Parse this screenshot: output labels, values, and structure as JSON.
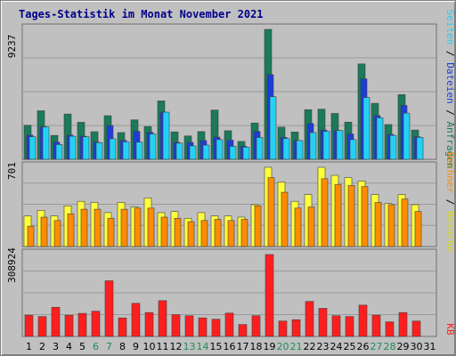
{
  "title": "Tages-Statistik im Monat November 2021",
  "colors": {
    "anfragen": "#1a7a5a",
    "dateien": "#1e3cd7",
    "seiten": "#22d2f5",
    "besuche": "#ffff3c",
    "rechner": "#ff8c00",
    "kb": "#ff1e1e",
    "weekend": "#1e8c5a",
    "weekday": "#000000"
  },
  "chart_data": [
    {
      "type": "bar",
      "panel": "top",
      "max_label": "9237",
      "right_label": {
        "anfragen": "Anfragen",
        "dateien": "Dateien",
        "seiten": "Seiten",
        "sep": "/"
      },
      "x": [
        1,
        2,
        3,
        4,
        5,
        6,
        7,
        8,
        9,
        10,
        11,
        12,
        13,
        14,
        15,
        16,
        17,
        18,
        19,
        20,
        21,
        22,
        23,
        24,
        25,
        26,
        27,
        28,
        29,
        30,
        31
      ],
      "series": [
        {
          "name": "Anfragen",
          "values": [
            2420,
            3450,
            1700,
            3220,
            2630,
            1960,
            3100,
            1900,
            2800,
            2330,
            4150,
            1950,
            1660,
            1970,
            3500,
            2030,
            1270,
            2580,
            9237,
            2290,
            1940,
            3530,
            3560,
            3260,
            2640,
            6780,
            3980,
            2470,
            4600,
            2080,
            0
          ]
        },
        {
          "name": "Dateien",
          "values": [
            1720,
            2330,
            1220,
            1720,
            1640,
            1220,
            2400,
            1350,
            1990,
            1920,
            3350,
            1200,
            1200,
            1330,
            1580,
            1360,
            930,
            1980,
            6020,
            1560,
            1330,
            2550,
            2080,
            2050,
            1800,
            5720,
            3110,
            1770,
            3830,
            1600,
            0
          ]
        },
        {
          "name": "Seiten",
          "values": [
            1600,
            2300,
            1050,
            1640,
            1600,
            1190,
            1460,
            1240,
            1220,
            1800,
            3350,
            1150,
            950,
            1010,
            1400,
            920,
            870,
            1550,
            4450,
            1480,
            1330,
            1900,
            1990,
            2050,
            1400,
            4390,
            2950,
            1700,
            3280,
            1560,
            0
          ]
        }
      ]
    },
    {
      "type": "bar",
      "panel": "middle",
      "max_label": "701",
      "right_label": {
        "rechner": "Rechner",
        "besuche": "Besuche",
        "sep": "/"
      },
      "x": [
        1,
        2,
        3,
        4,
        5,
        6,
        7,
        8,
        9,
        10,
        11,
        12,
        13,
        14,
        15,
        16,
        17,
        18,
        19,
        20,
        21,
        22,
        23,
        24,
        25,
        26,
        27,
        28,
        29,
        30,
        31
      ],
      "series": [
        {
          "name": "Besuche",
          "values": [
            270,
            320,
            270,
            360,
            400,
            390,
            300,
            390,
            350,
            430,
            300,
            310,
            250,
            300,
            270,
            270,
            260,
            370,
            701,
            570,
            400,
            460,
            701,
            630,
            610,
            580,
            460,
            380,
            460,
            370,
            0
          ]
        },
        {
          "name": "Rechner",
          "values": [
            180,
            260,
            230,
            290,
            330,
            330,
            250,
            330,
            340,
            340,
            260,
            250,
            220,
            230,
            240,
            230,
            240,
            360,
            610,
            480,
            340,
            350,
            600,
            550,
            540,
            530,
            390,
            370,
            420,
            310,
            0
          ]
        }
      ]
    },
    {
      "type": "bar",
      "panel": "bottom",
      "max_label": "308924",
      "right_label": {
        "kb": "KB"
      },
      "x": [
        1,
        2,
        3,
        4,
        5,
        6,
        7,
        8,
        9,
        10,
        11,
        12,
        13,
        14,
        15,
        16,
        17,
        18,
        19,
        20,
        21,
        22,
        23,
        24,
        25,
        26,
        27,
        28,
        29,
        30,
        31
      ],
      "series": [
        {
          "name": "KB",
          "values": [
            80000,
            75000,
            110000,
            80000,
            87000,
            95000,
            210000,
            70000,
            125000,
            90000,
            135000,
            82000,
            78000,
            70000,
            65000,
            88000,
            45000,
            78000,
            308924,
            58000,
            63000,
            132000,
            106000,
            78000,
            75000,
            118000,
            80000,
            55000,
            90000,
            58000,
            0
          ]
        }
      ]
    }
  ],
  "days": [
    "1",
    "2",
    "3",
    "4",
    "5",
    "6",
    "7",
    "8",
    "9",
    "10",
    "11",
    "12",
    "13",
    "14",
    "15",
    "16",
    "17",
    "18",
    "19",
    "20",
    "21",
    "22",
    "23",
    "24",
    "25",
    "26",
    "27",
    "28",
    "29",
    "30",
    "31"
  ],
  "weekend_days": [
    6,
    7,
    13,
    14,
    20,
    21,
    27,
    28
  ]
}
